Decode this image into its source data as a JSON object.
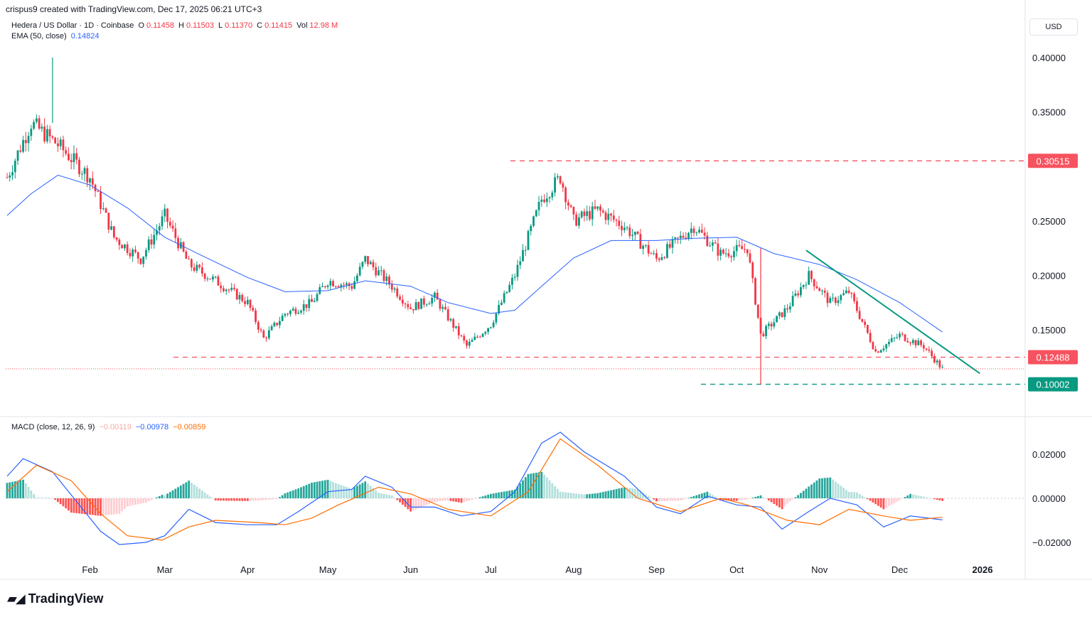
{
  "header": {
    "created_by": "crispus9 created with TradingView.com, Dec 17, 2025 06:21 UTC+3",
    "symbol": "Hedera / US Dollar · 1D · Coinbase",
    "o_label": "O",
    "o_value": "0.11458",
    "h_label": "H",
    "h_value": "0.11503",
    "l_label": "L",
    "l_value": "0.11370",
    "c_label": "C",
    "c_value": "0.11415",
    "vol_label": "Vol",
    "vol_value": "12.98 M",
    "ema_label": "EMA (50, close)",
    "ema_value": "0.14824",
    "macd_label": "MACD (close, 12, 26, 9)",
    "macd_hist": "−0.00119",
    "macd_line": "−0.00978",
    "macd_signal": "−0.00859",
    "currency_button": "USD"
  },
  "brand": {
    "name": "TradingView"
  },
  "colors": {
    "up": "#089981",
    "down": "#f23645",
    "ema": "#2962ff",
    "macd": "#2962ff",
    "signal": "#ff6d00",
    "trend": "#089981",
    "resistance": "#f7525f",
    "support_green": "#089981"
  },
  "chart_data": [
    {
      "type": "candlestick",
      "title": "Hedera / US Dollar · 1D · Coinbase",
      "y_axis_ticks": [
        "0.40000",
        "0.35000",
        "0.25000",
        "0.20000",
        "0.15000"
      ],
      "ylim": [
        0.085,
        0.42
      ],
      "x_axis_ticks": [
        "Feb",
        "Mar",
        "Apr",
        "May",
        "Jun",
        "Jul",
        "Aug",
        "Sep",
        "Oct",
        "Nov",
        "Dec",
        "2026"
      ],
      "horizontal_levels": [
        {
          "label": "0.30515",
          "value": 0.30515,
          "color": "#f7525f",
          "style": "dashed"
        },
        {
          "label": "0.12488",
          "value": 0.12488,
          "color": "#f7525f",
          "style": "dashed"
        },
        {
          "label": "0.10002",
          "value": 0.10002,
          "color": "#089981",
          "style": "dashed"
        }
      ],
      "trendline": {
        "from": {
          "date": "2025-10-27",
          "value": 0.223
        },
        "to": {
          "date": "2025-12-31",
          "value": 0.11
        }
      },
      "series": [
        {
          "name": "EMA (50, close)",
          "color": "#2962ff",
          "points": [
            [
              "2025-01-01",
              0.255
            ],
            [
              "2025-01-10",
              0.275
            ],
            [
              "2025-01-20",
              0.292
            ],
            [
              "2025-02-01",
              0.283
            ],
            [
              "2025-02-15",
              0.262
            ],
            [
              "2025-03-01",
              0.235
            ],
            [
              "2025-03-15",
              0.218
            ],
            [
              "2025-04-01",
              0.198
            ],
            [
              "2025-04-15",
              0.185
            ],
            [
              "2025-05-01",
              0.186
            ],
            [
              "2025-05-15",
              0.195
            ],
            [
              "2025-06-01",
              0.19
            ],
            [
              "2025-06-15",
              0.175
            ],
            [
              "2025-07-01",
              0.165
            ],
            [
              "2025-07-10",
              0.168
            ],
            [
              "2025-07-20",
              0.19
            ],
            [
              "2025-08-01",
              0.216
            ],
            [
              "2025-08-15",
              0.232
            ],
            [
              "2025-09-01",
              0.232
            ],
            [
              "2025-09-15",
              0.234
            ],
            [
              "2025-10-01",
              0.235
            ],
            [
              "2025-10-15",
              0.22
            ],
            [
              "2025-11-01",
              0.21
            ],
            [
              "2025-11-15",
              0.196
            ],
            [
              "2025-12-01",
              0.175
            ],
            [
              "2025-12-17",
              0.148
            ]
          ]
        },
        {
          "name": "OHLC",
          "candles_note": "approximate daily closes",
          "closes": [
            [
              "2025-01-01",
              0.29
            ],
            [
              "2025-01-10",
              0.34
            ],
            [
              "2025-01-20",
              0.32
            ],
            [
              "2025-02-01",
              0.29
            ],
            [
              "2025-02-10",
              0.235
            ],
            [
              "2025-02-20",
              0.215
            ],
            [
              "2025-03-01",
              0.255
            ],
            [
              "2025-03-10",
              0.21
            ],
            [
              "2025-03-20",
              0.195
            ],
            [
              "2025-04-01",
              0.175
            ],
            [
              "2025-04-07",
              0.142
            ],
            [
              "2025-04-15",
              0.165
            ],
            [
              "2025-04-25",
              0.175
            ],
            [
              "2025-05-01",
              0.195
            ],
            [
              "2025-05-10",
              0.19
            ],
            [
              "2025-05-15",
              0.215
            ],
            [
              "2025-05-25",
              0.19
            ],
            [
              "2025-06-01",
              0.17
            ],
            [
              "2025-06-10",
              0.18
            ],
            [
              "2025-06-22",
              0.135
            ],
            [
              "2025-07-01",
              0.155
            ],
            [
              "2025-07-10",
              0.2
            ],
            [
              "2025-07-20",
              0.27
            ],
            [
              "2025-07-27",
              0.29
            ],
            [
              "2025-08-01",
              0.25
            ],
            [
              "2025-08-10",
              0.26
            ],
            [
              "2025-08-20",
              0.245
            ],
            [
              "2025-09-01",
              0.215
            ],
            [
              "2025-09-15",
              0.245
            ],
            [
              "2025-09-25",
              0.22
            ],
            [
              "2025-10-05",
              0.225
            ],
            [
              "2025-10-10",
              0.145
            ],
            [
              "2025-10-20",
              0.17
            ],
            [
              "2025-10-28",
              0.2
            ],
            [
              "2025-11-05",
              0.175
            ],
            [
              "2025-11-12",
              0.185
            ],
            [
              "2025-11-22",
              0.13
            ],
            [
              "2025-12-01",
              0.145
            ],
            [
              "2025-12-10",
              0.135
            ],
            [
              "2025-12-17",
              0.114
            ]
          ]
        }
      ]
    },
    {
      "type": "macd",
      "title": "MACD (close, 12, 26, 9)",
      "y_axis_ticks": [
        "0.02000",
        "0.00000",
        "−0.02000"
      ],
      "ylim": [
        -0.032,
        0.033
      ],
      "series": [
        {
          "name": "MACD",
          "color": "#2962ff",
          "points": [
            [
              "2025-01-01",
              0.01
            ],
            [
              "2025-01-07",
              0.018
            ],
            [
              "2025-01-18",
              0.012
            ],
            [
              "2025-01-28",
              -0.003
            ],
            [
              "2025-02-05",
              -0.015
            ],
            [
              "2025-02-12",
              -0.021
            ],
            [
              "2025-02-22",
              -0.02
            ],
            [
              "2025-03-01",
              -0.017
            ],
            [
              "2025-03-10",
              -0.005
            ],
            [
              "2025-03-20",
              -0.011
            ],
            [
              "2025-04-01",
              -0.012
            ],
            [
              "2025-04-12",
              -0.012
            ],
            [
              "2025-04-20",
              -0.006
            ],
            [
              "2025-05-01",
              0.003
            ],
            [
              "2025-05-10",
              0.004
            ],
            [
              "2025-05-15",
              0.01
            ],
            [
              "2025-05-25",
              0.005
            ],
            [
              "2025-06-01",
              -0.004
            ],
            [
              "2025-06-10",
              -0.004
            ],
            [
              "2025-06-20",
              -0.008
            ],
            [
              "2025-07-01",
              -0.006
            ],
            [
              "2025-07-10",
              0.003
            ],
            [
              "2025-07-20",
              0.025
            ],
            [
              "2025-07-27",
              0.03
            ],
            [
              "2025-08-05",
              0.021
            ],
            [
              "2025-08-20",
              0.01
            ],
            [
              "2025-09-01",
              -0.004
            ],
            [
              "2025-09-10",
              -0.007
            ],
            [
              "2025-09-20",
              0.001
            ],
            [
              "2025-10-01",
              -0.003
            ],
            [
              "2025-10-10",
              -0.004
            ],
            [
              "2025-10-18",
              -0.014
            ],
            [
              "2025-10-28",
              -0.006
            ],
            [
              "2025-11-05",
              0.0
            ],
            [
              "2025-11-15",
              -0.003
            ],
            [
              "2025-11-25",
              -0.013
            ],
            [
              "2025-12-05",
              -0.008
            ],
            [
              "2025-12-17",
              -0.0098
            ]
          ]
        },
        {
          "name": "Signal",
          "color": "#ff6d00",
          "points": [
            [
              "2025-01-01",
              0.003
            ],
            [
              "2025-01-12",
              0.015
            ],
            [
              "2025-01-25",
              0.008
            ],
            [
              "2025-02-05",
              -0.007
            ],
            [
              "2025-02-15",
              -0.017
            ],
            [
              "2025-02-28",
              -0.019
            ],
            [
              "2025-03-10",
              -0.013
            ],
            [
              "2025-03-20",
              -0.01
            ],
            [
              "2025-04-05",
              -0.011
            ],
            [
              "2025-04-15",
              -0.012
            ],
            [
              "2025-04-25",
              -0.009
            ],
            [
              "2025-05-05",
              -0.003
            ],
            [
              "2025-05-20",
              0.005
            ],
            [
              "2025-06-01",
              0.002
            ],
            [
              "2025-06-15",
              -0.005
            ],
            [
              "2025-07-01",
              -0.008
            ],
            [
              "2025-07-15",
              0.003
            ],
            [
              "2025-07-27",
              0.027
            ],
            [
              "2025-08-10",
              0.015
            ],
            [
              "2025-08-25",
              0.0
            ],
            [
              "2025-09-10",
              -0.006
            ],
            [
              "2025-09-25",
              0.0
            ],
            [
              "2025-10-05",
              -0.003
            ],
            [
              "2025-10-20",
              -0.01
            ],
            [
              "2025-11-01",
              -0.012
            ],
            [
              "2025-11-12",
              -0.005
            ],
            [
              "2025-11-25",
              -0.008
            ],
            [
              "2025-12-05",
              -0.01
            ],
            [
              "2025-12-17",
              -0.0086
            ]
          ]
        }
      ]
    }
  ]
}
